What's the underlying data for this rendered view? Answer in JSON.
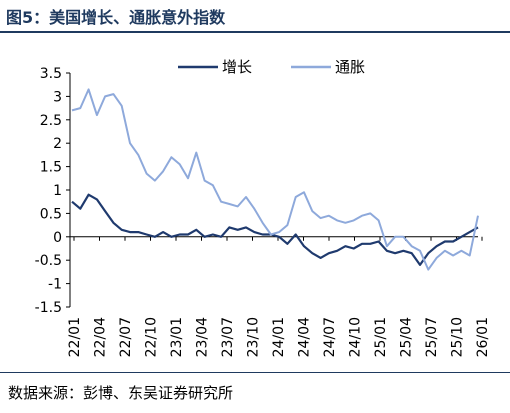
{
  "figure": {
    "title": "图5：美国增长、通胀意外指数",
    "source": "数据来源：彭博、东吴证券研究所"
  },
  "chart_data": {
    "type": "line",
    "title": "",
    "xlabel": "",
    "ylabel": "",
    "ylim": [
      -1.5,
      3.5
    ],
    "yticks": [
      "3.5",
      "3",
      "2.5",
      "2",
      "1.5",
      "1",
      "0.5",
      "0",
      "-0.5",
      "-1",
      "-1.5"
    ],
    "xticks": [
      "22/01",
      "22/04",
      "22/07",
      "22/10",
      "23/01",
      "23/04",
      "23/07",
      "23/10",
      "24/01",
      "24/04",
      "24/07",
      "24/10",
      "25/01",
      "25/04",
      "25/07",
      "25/10",
      "26/01"
    ],
    "legend": {
      "position": "top-center"
    },
    "series": [
      {
        "name": "增长",
        "color": "#1f3a6e",
        "x": [
          "22/01",
          "22/02",
          "22/03",
          "22/04",
          "22/05",
          "22/06",
          "22/07",
          "22/08",
          "22/09",
          "22/10",
          "22/11",
          "22/12",
          "23/01",
          "23/02",
          "23/03",
          "23/04",
          "23/05",
          "23/06",
          "23/07",
          "23/08",
          "23/09",
          "23/10",
          "23/11",
          "23/12",
          "24/01",
          "24/02",
          "24/03",
          "24/04",
          "24/05",
          "24/06",
          "24/07",
          "24/08",
          "24/09",
          "24/10",
          "24/11",
          "24/12",
          "25/01",
          "25/02",
          "25/03",
          "25/04",
          "25/05",
          "25/06",
          "25/07",
          "25/08",
          "25/09",
          "25/10",
          "25/11",
          "25/12",
          "26/01",
          "26/02"
        ],
        "values": [
          0.75,
          0.6,
          0.9,
          0.8,
          0.55,
          0.3,
          0.15,
          0.1,
          0.1,
          0.05,
          0.0,
          0.1,
          0.0,
          0.05,
          0.05,
          0.15,
          0.0,
          0.05,
          0.0,
          0.2,
          0.15,
          0.2,
          0.1,
          0.05,
          0.05,
          0.0,
          -0.15,
          0.05,
          -0.2,
          -0.35,
          -0.45,
          -0.35,
          -0.3,
          -0.2,
          -0.25,
          -0.15,
          -0.15,
          -0.1,
          -0.3,
          -0.35,
          -0.3,
          -0.35,
          -0.6,
          -0.35,
          -0.2,
          -0.1,
          -0.1,
          0.0,
          0.1,
          0.2
        ]
      },
      {
        "name": "通胀",
        "color": "#8ea9db",
        "x": [
          "22/01",
          "22/02",
          "22/03",
          "22/04",
          "22/05",
          "22/06",
          "22/07",
          "22/08",
          "22/09",
          "22/10",
          "22/11",
          "22/12",
          "23/01",
          "23/02",
          "23/03",
          "23/04",
          "23/05",
          "23/06",
          "23/07",
          "23/08",
          "23/09",
          "23/10",
          "23/11",
          "23/12",
          "24/01",
          "24/02",
          "24/03",
          "24/04",
          "24/05",
          "24/06",
          "24/07",
          "24/08",
          "24/09",
          "24/10",
          "24/11",
          "24/12",
          "25/01",
          "25/02",
          "25/03",
          "25/04",
          "25/05",
          "25/06",
          "25/07",
          "25/08",
          "25/09",
          "25/10",
          "25/11",
          "25/12",
          "26/01",
          "26/02"
        ],
        "values": [
          2.7,
          2.75,
          3.15,
          2.6,
          3.0,
          3.05,
          2.8,
          2.0,
          1.75,
          1.35,
          1.2,
          1.4,
          1.7,
          1.55,
          1.25,
          1.8,
          1.2,
          1.1,
          0.75,
          0.7,
          0.65,
          0.85,
          0.6,
          0.3,
          0.05,
          0.1,
          0.25,
          0.85,
          0.95,
          0.55,
          0.4,
          0.45,
          0.35,
          0.3,
          0.35,
          0.45,
          0.5,
          0.35,
          -0.2,
          0.0,
          0.0,
          -0.2,
          -0.3,
          -0.7,
          -0.45,
          -0.3,
          -0.4,
          -0.3,
          -0.4,
          0.45
        ]
      }
    ]
  }
}
